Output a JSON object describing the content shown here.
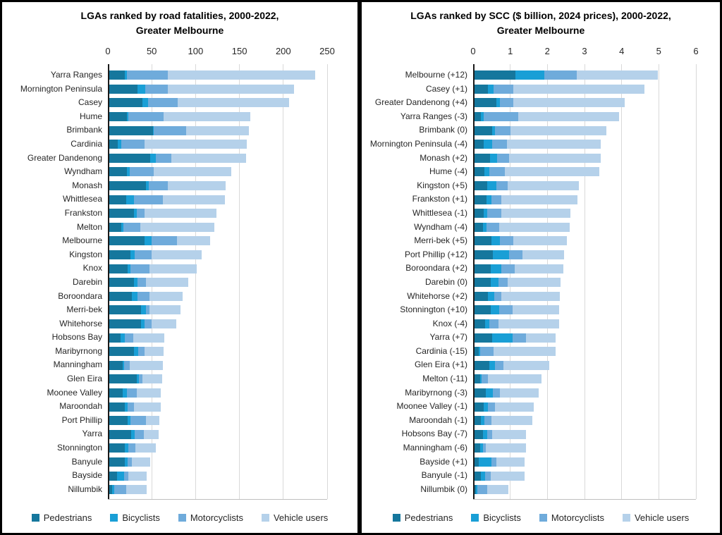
{
  "colors": {
    "pedestrians": "#15779d",
    "bicyclists": "#199fd6",
    "motorcyclists": "#6fabdb",
    "vehicle_users": "#b5d1ea",
    "gridline": "#d9d9d9",
    "axis": "#1a1a1a",
    "border": "#000000"
  },
  "chart_data": [
    {
      "type": "bar",
      "orientation": "horizontal",
      "stacked": true,
      "title_line1": "LGAs ranked by road fatalities, 2000-2022,",
      "title_line2": "Greater Melbourne",
      "xlabel": "",
      "ylabel": "",
      "xlim": [
        0,
        250
      ],
      "ticks": [
        0,
        50,
        100,
        150,
        200,
        250
      ],
      "grid": true,
      "legend_position": "bottom",
      "categories": [
        "Yarra Ranges",
        "Mornington Peninsula",
        "Casey",
        "Hume",
        "Brimbank",
        "Cardinia",
        "Greater Dandenong",
        "Wyndham",
        "Monash",
        "Whittlesea",
        "Frankston",
        "Melton",
        "Melbourne",
        "Kingston",
        "Knox",
        "Darebin",
        "Boroondara",
        "Merri-bek",
        "Whitehorse",
        "Hobsons Bay",
        "Maribyrnong",
        "Manningham",
        "Glen Eira",
        "Moonee Valley",
        "Maroondah",
        "Port Phillip",
        "Yarra",
        "Stonnington",
        "Banyule",
        "Bayside",
        "Nillumbik"
      ],
      "series": [
        {
          "name": "Pedestrians",
          "color": "#15779d",
          "values": [
            18,
            32,
            38,
            20,
            50,
            10,
            47,
            20,
            42,
            19,
            28,
            14,
            40,
            24,
            21,
            28,
            26,
            36,
            36,
            13,
            28,
            15,
            31,
            15,
            18,
            21,
            25,
            18,
            18,
            9,
            3
          ]
        },
        {
          "name": "Bicyclists",
          "color": "#199fd6",
          "values": [
            2,
            9,
            6,
            2,
            1,
            4,
            6,
            3,
            3,
            9,
            3,
            2,
            8,
            5,
            3,
            4,
            6,
            6,
            4,
            5,
            5,
            2,
            3,
            5,
            3,
            3,
            4,
            4,
            3,
            8,
            3
          ]
        },
        {
          "name": "Motorcyclists",
          "color": "#6fabdb",
          "values": [
            47,
            26,
            34,
            40,
            37,
            26,
            18,
            28,
            22,
            33,
            9,
            19,
            29,
            19,
            22,
            10,
            14,
            4,
            8,
            9,
            7,
            6,
            4,
            11,
            7,
            18,
            10,
            8,
            5,
            5,
            13
          ]
        },
        {
          "name": "Vehicle users",
          "color": "#b5d1ea",
          "values": [
            168,
            144,
            127,
            99,
            71,
            117,
            85,
            88,
            66,
            71,
            82,
            85,
            38,
            57,
            54,
            48,
            38,
            35,
            28,
            36,
            22,
            38,
            22,
            28,
            31,
            15,
            17,
            23,
            21,
            21,
            24
          ]
        }
      ]
    },
    {
      "type": "bar",
      "orientation": "horizontal",
      "stacked": true,
      "title_line1": "LGAs ranked by SCC ($ billion, 2024 prices), 2000-2022,",
      "title_line2": "Greater Melbourne",
      "xlabel": "",
      "ylabel": "",
      "xlim": [
        0,
        6
      ],
      "ticks": [
        0,
        1,
        2,
        3,
        4,
        5,
        6
      ],
      "grid": true,
      "legend_position": "bottom",
      "categories": [
        "Melbourne (+12)",
        "Casey (+1)",
        "Greater Dandenong (+4)",
        "Yarra Ranges (-3)",
        "Brimbank (0)",
        "Mornington Peninsula (-4)",
        "Monash (+2)",
        "Hume (-4)",
        "Kingston (+5)",
        "Frankston (+1)",
        "Whittlesea (-1)",
        "Wyndham (-4)",
        "Merri-bek (+5)",
        "Port Phillip (+12)",
        "Boroondara (+2)",
        "Darebin (0)",
        "Whitehorse (+2)",
        "Stonnington (+10)",
        "Knox (-4)",
        "Yarra (+7)",
        "Cardinia (-15)",
        "Glen Eira (+1)",
        "Melton (-11)",
        "Maribyrnong (-3)",
        "Moonee Valley (-1)",
        "Maroondah (-1)",
        "Hobsons Bay (-7)",
        "Manningham (-6)",
        "Bayside (+1)",
        "Banyule (-1)",
        "Nillumbik (0)"
      ],
      "series": [
        {
          "name": "Pedestrians",
          "color": "#15779d",
          "values": [
            1.11,
            0.37,
            0.58,
            0.17,
            0.47,
            0.25,
            0.42,
            0.27,
            0.34,
            0.32,
            0.24,
            0.22,
            0.45,
            0.49,
            0.43,
            0.43,
            0.37,
            0.43,
            0.29,
            0.48,
            0.11,
            0.39,
            0.16,
            0.31,
            0.25,
            0.18,
            0.23,
            0.15,
            0.11,
            0.18,
            0.04
          ]
        },
        {
          "name": "Bicyclists",
          "color": "#199fd6",
          "values": [
            0.77,
            0.15,
            0.11,
            0.08,
            0.08,
            0.22,
            0.18,
            0.12,
            0.25,
            0.13,
            0.1,
            0.1,
            0.24,
            0.45,
            0.3,
            0.21,
            0.17,
            0.24,
            0.1,
            0.54,
            0.04,
            0.17,
            0.03,
            0.19,
            0.12,
            0.09,
            0.11,
            0.08,
            0.34,
            0.11,
            0.03
          ]
        },
        {
          "name": "Motorcyclists",
          "color": "#6fabdb",
          "values": [
            0.87,
            0.52,
            0.35,
            0.93,
            0.41,
            0.4,
            0.34,
            0.43,
            0.31,
            0.27,
            0.38,
            0.35,
            0.36,
            0.36,
            0.35,
            0.26,
            0.19,
            0.35,
            0.25,
            0.37,
            0.36,
            0.22,
            0.18,
            0.18,
            0.19,
            0.18,
            0.14,
            0.08,
            0.14,
            0.15,
            0.27
          ]
        },
        {
          "name": "Vehicle users",
          "color": "#b5d1ea",
          "values": [
            2.18,
            3.54,
            3.0,
            2.71,
            2.6,
            2.53,
            2.46,
            2.55,
            1.91,
            2.06,
            1.86,
            1.89,
            1.44,
            1.11,
            1.31,
            1.42,
            1.57,
            1.26,
            1.63,
            0.8,
            1.67,
            1.23,
            1.44,
            1.04,
            1.03,
            1.11,
            0.91,
            1.08,
            0.76,
            0.91,
            0.57
          ]
        }
      ]
    }
  ]
}
